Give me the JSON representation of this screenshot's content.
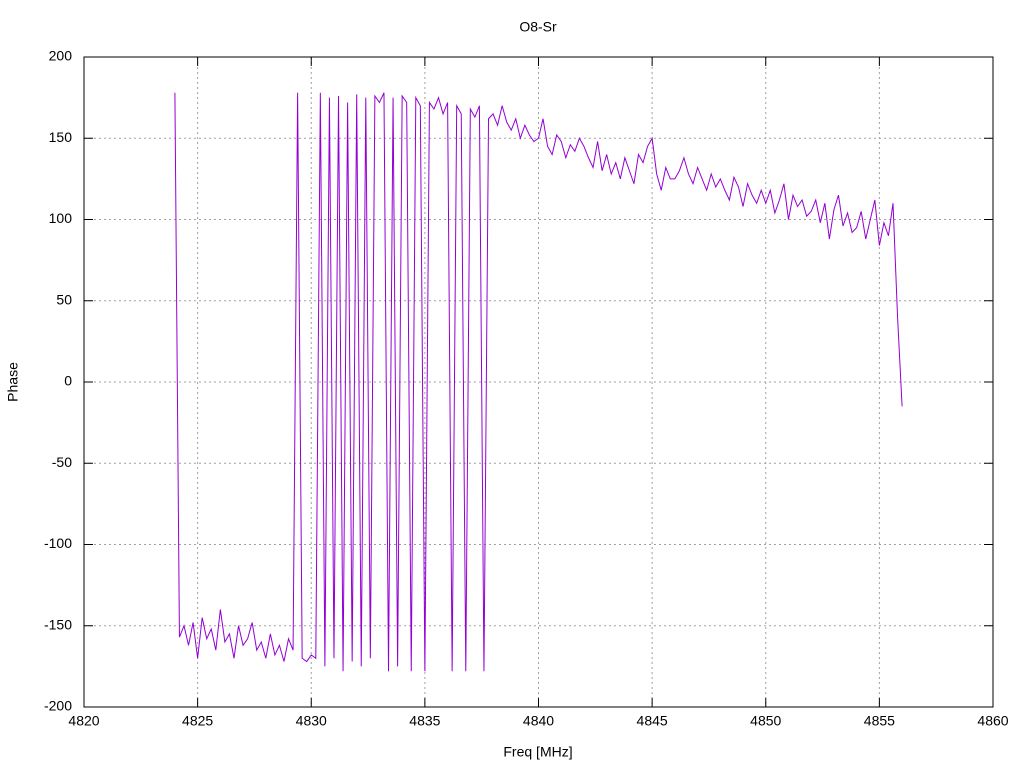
{
  "chart_data": {
    "type": "line",
    "title": "O8-Sr",
    "x_label": "Freq [MHz]",
    "y_label": "Phase",
    "color": "#9400d3",
    "grid": true,
    "xlim": [
      4820,
      4860
    ],
    "xticks": [
      4820,
      4825,
      4830,
      4835,
      4840,
      4845,
      4850,
      4855,
      4860
    ],
    "ylim": [
      -200,
      200
    ],
    "yticks": [
      -200,
      -150,
      -100,
      -50,
      0,
      50,
      100,
      150,
      200
    ],
    "x": [
      4824,
      4824.2,
      4824.4,
      4824.6,
      4824.8,
      4825,
      4825.2,
      4825.4,
      4825.6,
      4825.8,
      4826,
      4826.2,
      4826.4,
      4826.6,
      4826.8,
      4827,
      4827.2,
      4827.4,
      4827.6,
      4827.8,
      4828,
      4828.2,
      4828.4,
      4828.6,
      4828.8,
      4829,
      4829.2,
      4829.4,
      4829.6,
      4829.8,
      4830,
      4830.2,
      4830.4,
      4830.6,
      4830.8,
      4831,
      4831.2,
      4831.4,
      4831.6,
      4831.8,
      4832,
      4832.2,
      4832.4,
      4832.6,
      4832.8,
      4833,
      4833.2,
      4833.4,
      4833.6,
      4833.8,
      4834,
      4834.2,
      4834.4,
      4834.6,
      4834.8,
      4835,
      4835.2,
      4835.4,
      4835.6,
      4835.8,
      4836,
      4836.2,
      4836.4,
      4836.6,
      4836.8,
      4837,
      4837.2,
      4837.4,
      4837.6,
      4837.8,
      4838,
      4838.2,
      4838.4,
      4838.6,
      4838.8,
      4839,
      4839.2,
      4839.4,
      4839.6,
      4839.8,
      4840,
      4840.2,
      4840.4,
      4840.6,
      4840.8,
      4841,
      4841.2,
      4841.4,
      4841.6,
      4841.8,
      4842,
      4842.2,
      4842.4,
      4842.6,
      4842.8,
      4843,
      4843.2,
      4843.4,
      4843.6,
      4843.8,
      4844,
      4844.2,
      4844.4,
      4844.6,
      4844.8,
      4845,
      4845.2,
      4845.4,
      4845.6,
      4845.8,
      4846,
      4846.2,
      4846.4,
      4846.6,
      4846.8,
      4847,
      4847.2,
      4847.4,
      4847.6,
      4847.8,
      4848,
      4848.2,
      4848.4,
      4848.6,
      4848.8,
      4849,
      4849.2,
      4849.4,
      4849.6,
      4849.8,
      4850,
      4850.2,
      4850.4,
      4850.6,
      4850.8,
      4851,
      4851.2,
      4851.4,
      4851.6,
      4851.8,
      4852,
      4852.2,
      4852.4,
      4852.6,
      4852.8,
      4853,
      4853.2,
      4853.4,
      4853.6,
      4853.8,
      4854,
      4854.2,
      4854.4,
      4854.6,
      4854.8,
      4855,
      4855.2,
      4855.4,
      4855.6,
      4855.8,
      4856
    ],
    "values": [
      178,
      -157,
      -150,
      -162,
      -148,
      -170,
      -145,
      -158,
      -152,
      -165,
      -140,
      -160,
      -155,
      -170,
      -150,
      -162,
      -158,
      -148,
      -165,
      -160,
      -170,
      -155,
      -168,
      -162,
      -172,
      -158,
      -165,
      178,
      -170,
      -172,
      -168,
      -170,
      178,
      -175,
      175,
      -170,
      176,
      -178,
      172,
      -172,
      177,
      -175,
      175,
      -170,
      176,
      172,
      178,
      -178,
      175,
      -175,
      176,
      172,
      -178,
      175,
      170,
      -178,
      172,
      168,
      175,
      165,
      172,
      -178,
      170,
      165,
      -178,
      168,
      163,
      170,
      -178,
      162,
      165,
      158,
      170,
      160,
      155,
      162,
      150,
      158,
      152,
      148,
      150,
      162,
      145,
      140,
      152,
      148,
      138,
      146,
      142,
      150,
      145,
      138,
      132,
      148,
      130,
      140,
      128,
      135,
      125,
      138,
      130,
      122,
      140,
      135,
      145,
      150,
      128,
      118,
      132,
      125,
      125,
      130,
      138,
      128,
      122,
      132,
      125,
      118,
      128,
      120,
      125,
      118,
      112,
      126,
      120,
      108,
      122,
      115,
      110,
      118,
      110,
      118,
      104,
      112,
      122,
      100,
      115,
      108,
      112,
      102,
      105,
      112,
      98,
      110,
      88,
      106,
      115,
      96,
      104,
      92,
      95,
      105,
      88,
      100,
      112,
      84,
      98,
      90,
      110,
      40,
      -15
    ]
  }
}
